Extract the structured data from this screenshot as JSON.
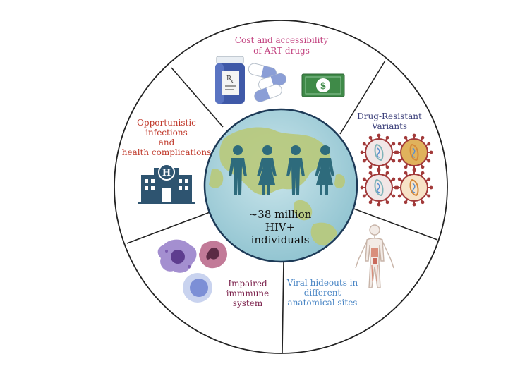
{
  "center": {
    "line1": "~38 million",
    "line2": "HIV+",
    "line3": "individuals"
  },
  "segments": {
    "cost": {
      "line1": "Cost and accessibility",
      "line2": "of ART drugs",
      "color": "#c2417f"
    },
    "resistance": {
      "line1": "Drug-Resistant",
      "line2": "Variants",
      "color": "#3b3f7a"
    },
    "reservoirs": {
      "line1": "Viral hideouts in",
      "line2": "different",
      "line3": "anatomical sites",
      "color": "#4a86c5"
    },
    "immune": {
      "line1": "Impaired",
      "line2": "immmune",
      "line3": "system",
      "color": "#7a1f4a"
    },
    "infections": {
      "line1": "Opportunistic",
      "line2": "infections",
      "line3": "and",
      "line4": "health complications",
      "color": "#c0392b"
    }
  },
  "icons": {
    "pill_bottle_label": "R",
    "pill_bottle_label_sub": "x",
    "dollar_symbol": "$",
    "hospital_symbol": "H"
  },
  "colors": {
    "globe_water": "#a9d3dc",
    "globe_land": "#b9c97a",
    "person": "#2e6b7c",
    "hospital": "#2e5470",
    "virus_red": "#a23a3a",
    "virus_gold": "#e0b25c",
    "cash": "#3f8a48"
  }
}
